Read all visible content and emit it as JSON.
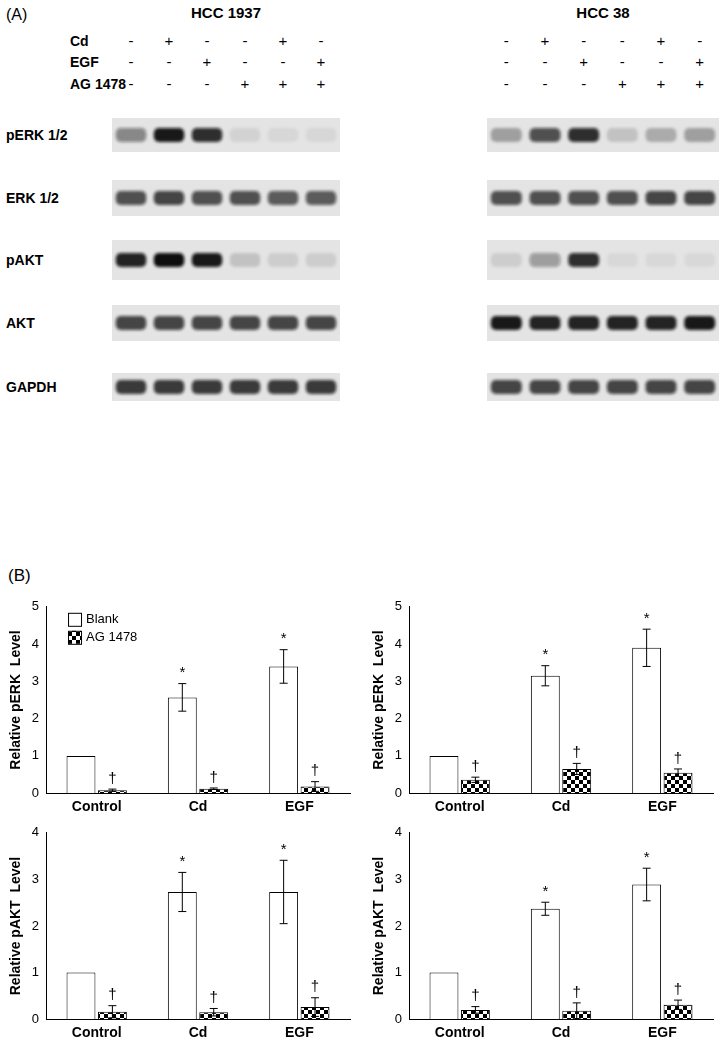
{
  "panel_a": {
    "label": "(A)",
    "treatments": [
      {
        "label": "Cd",
        "signs": [
          "-",
          "+",
          "-",
          "-",
          "+",
          "-"
        ]
      },
      {
        "label": "EGF",
        "signs": [
          "-",
          "-",
          "+",
          "-",
          "-",
          "+"
        ]
      },
      {
        "label": "AG 1478",
        "signs": [
          "-",
          "-",
          "-",
          "+",
          "+",
          "+"
        ]
      }
    ],
    "row_labels": [
      "pERK 1/2",
      "ERK 1/2",
      "pAKT",
      "AKT",
      "GAPDH"
    ],
    "blots": [
      {
        "title": "HCC 1937",
        "bands": [
          [
            0.45,
            0.95,
            0.85,
            0.08,
            0.06,
            0.06
          ],
          [
            0.7,
            0.75,
            0.7,
            0.7,
            0.65,
            0.65
          ],
          [
            0.9,
            1.0,
            0.95,
            0.15,
            0.1,
            0.1
          ],
          [
            0.75,
            0.75,
            0.75,
            0.75,
            0.75,
            0.75
          ],
          [
            0.8,
            0.8,
            0.8,
            0.8,
            0.8,
            0.8
          ]
        ]
      },
      {
        "title": "HCC 38",
        "bands": [
          [
            0.3,
            0.7,
            0.85,
            0.15,
            0.25,
            0.3
          ],
          [
            0.7,
            0.7,
            0.7,
            0.7,
            0.75,
            0.75
          ],
          [
            0.1,
            0.35,
            0.85,
            0.05,
            0.05,
            0.05
          ],
          [
            0.95,
            0.9,
            0.9,
            0.9,
            0.9,
            0.95
          ],
          [
            0.75,
            0.75,
            0.75,
            0.75,
            0.75,
            0.75
          ]
        ]
      }
    ]
  },
  "panel_b": {
    "label": "(B)"
  },
  "chart_data": [
    {
      "type": "bar",
      "y_label": "Relative pERK  Level",
      "categories": [
        "Control",
        "Cd",
        "EGF"
      ],
      "ylim": [
        0,
        5
      ],
      "yticks": [
        0,
        1,
        2,
        3,
        4,
        5
      ],
      "grid": false,
      "legend": "upper left",
      "series": [
        {
          "name": "Blank",
          "color": "#ffffff",
          "values": [
            1,
            2.57,
            3.4
          ],
          "errors": [
            0,
            0.37,
            0.45
          ],
          "annotations": [
            null,
            "*",
            "*"
          ]
        },
        {
          "name": "AG 1478",
          "color": "#000000",
          "marker": "checkered",
          "values": [
            0.08,
            0.12,
            0.18
          ],
          "errors": [
            0.03,
            0.02,
            0.13
          ],
          "annotations": [
            "†",
            "†",
            "†"
          ]
        }
      ]
    },
    {
      "type": "bar",
      "y_label": "Relative pERK  Level",
      "categories": [
        "Control",
        "Cd",
        "EGF"
      ],
      "ylim": [
        0,
        5
      ],
      "yticks": [
        0,
        1,
        2,
        3,
        4,
        5
      ],
      "grid": false,
      "series": [
        {
          "name": "Blank",
          "color": "#ffffff",
          "values": [
            1,
            3.15,
            3.9
          ],
          "errors": [
            0,
            0.27,
            0.5
          ],
          "annotations": [
            null,
            "*",
            "*"
          ]
        },
        {
          "name": "AG 1478",
          "color": "#000000",
          "marker": "checkered",
          "values": [
            0.36,
            0.65,
            0.55
          ],
          "errors": [
            0.07,
            0.15,
            0.1
          ],
          "annotations": [
            "†",
            "†",
            "†"
          ]
        }
      ]
    },
    {
      "type": "bar",
      "y_label": "Relative pAKT  Level",
      "categories": [
        "Control",
        "Cd",
        "EGF"
      ],
      "ylim": [
        0,
        4
      ],
      "yticks": [
        0,
        1,
        2,
        3,
        4
      ],
      "grid": false,
      "series": [
        {
          "name": "Blank",
          "color": "#ffffff",
          "values": [
            1,
            2.73,
            2.73
          ],
          "errors": [
            0,
            0.42,
            0.68
          ],
          "annotations": [
            null,
            "*",
            "*"
          ]
        },
        {
          "name": "AG 1478",
          "color": "#000000",
          "marker": "checkered",
          "values": [
            0.16,
            0.15,
            0.26
          ],
          "errors": [
            0.13,
            0.08,
            0.2
          ],
          "annotations": [
            "†",
            "†",
            "†"
          ]
        }
      ]
    },
    {
      "type": "bar",
      "y_label": "Relative pAKT  Level",
      "categories": [
        "Control",
        "Cd",
        "EGF"
      ],
      "ylim": [
        0,
        4
      ],
      "yticks": [
        0,
        1,
        2,
        3,
        4
      ],
      "grid": false,
      "series": [
        {
          "name": "Blank",
          "color": "#ffffff",
          "values": [
            1,
            2.37,
            2.89
          ],
          "errors": [
            0,
            0.14,
            0.35
          ],
          "annotations": [
            null,
            "*",
            "*"
          ]
        },
        {
          "name": "AG 1478",
          "color": "#000000",
          "marker": "checkered",
          "values": [
            0.2,
            0.18,
            0.31
          ],
          "errors": [
            0.07,
            0.17,
            0.1
          ],
          "annotations": [
            "†",
            "†",
            "†"
          ]
        }
      ]
    }
  ]
}
